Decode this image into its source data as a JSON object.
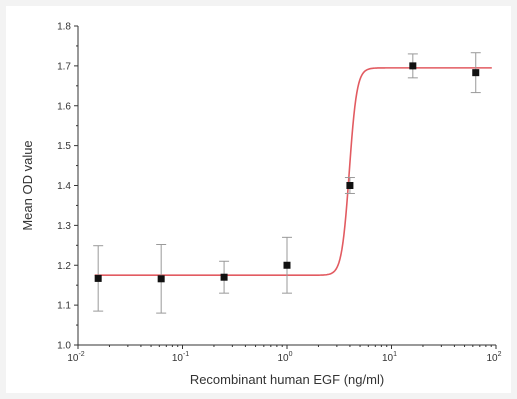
{
  "chart_data": {
    "type": "scatter",
    "title": "",
    "xlabel": "Recombinant human EGF (ng/ml)",
    "ylabel": "Mean OD value",
    "x_scale": "log",
    "xlim": [
      0.01,
      100
    ],
    "ylim": [
      1.0,
      1.8
    ],
    "x_ticks": [
      {
        "value": 0.01,
        "base": "10",
        "exp": "-2"
      },
      {
        "value": 0.1,
        "base": "10",
        "exp": "-1"
      },
      {
        "value": 1,
        "base": "10",
        "exp": "0"
      },
      {
        "value": 10,
        "base": "10",
        "exp": "1"
      },
      {
        "value": 100,
        "base": "10",
        "exp": "2"
      }
    ],
    "y_ticks": [
      "1.0",
      "1.1",
      "1.2",
      "1.3",
      "1.4",
      "1.5",
      "1.6",
      "1.7",
      "1.8"
    ],
    "grid": false,
    "series": [
      {
        "points": [
          {
            "x": 0.0156,
            "y": 1.167,
            "err": 0.082
          },
          {
            "x": 0.0625,
            "y": 1.166,
            "err": 0.086
          },
          {
            "x": 0.25,
            "y": 1.17,
            "err": 0.04
          },
          {
            "x": 1.0,
            "y": 1.2,
            "err": 0.07
          },
          {
            "x": 4.0,
            "y": 1.4,
            "err": 0.02
          },
          {
            "x": 16.0,
            "y": 1.7,
            "err": 0.03
          },
          {
            "x": 64.0,
            "y": 1.683,
            "err": 0.05
          }
        ]
      }
    ],
    "fit_curve": {
      "bottom": 1.175,
      "top": 1.695,
      "logEC50": 0.596,
      "hill_slope": 12,
      "color": "#e25b61"
    },
    "marker_color": "#111111",
    "errorbar_color": "#999999"
  }
}
